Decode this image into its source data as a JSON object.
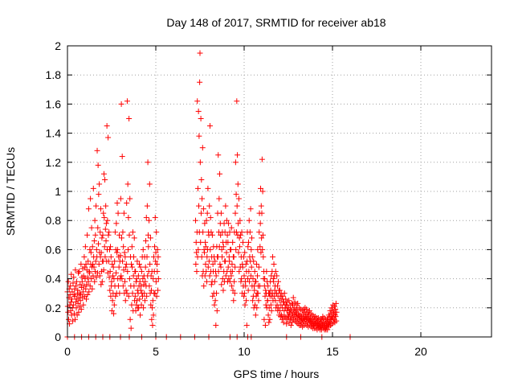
{
  "chart_data": {
    "type": "scatter",
    "title": "Day 148 of 2017, SRMTID for receiver ab18",
    "xlabel": "GPS time / hours",
    "ylabel": "SRMTID / TECUs",
    "xlim": [
      0,
      24
    ],
    "ylim": [
      0,
      2
    ],
    "x_ticks": [
      "0",
      "5",
      "10",
      "15",
      "20"
    ],
    "y_ticks": [
      "0",
      "0.2",
      "0.4",
      "0.6",
      "0.8",
      "1",
      "1.2",
      "1.4",
      "1.6",
      "1.8",
      "2"
    ],
    "grid": true,
    "marker": "plus",
    "color": "#ff0000",
    "x_step_hours": 0.08333,
    "series": [
      {
        "values": [
          [
            0.31,
            0.21,
            0.17,
            0.38,
            0.12
          ],
          [
            0.27,
            0.33,
            0.09,
            0.22,
            0.29
          ],
          [
            0.35,
            0.18,
            0.24,
            0.43,
            0.15
          ],
          [
            0.26,
            0.31,
            0.2,
            0.11,
            0.37
          ],
          [
            0.22,
            0.41,
            0.29,
            0.16,
            0.33
          ],
          [
            0.28,
            0.12,
            0.46,
            0.24,
            0.35
          ],
          [
            0.2,
            0.38,
            0.26,
            0.15,
            0.3
          ],
          [
            0.32,
            0.23,
            0.44,
            0.17,
            0.27
          ],
          [
            0.45,
            0.3,
            0.21,
            0.36,
            0.25
          ],
          [
            0.29,
            0.5,
            0.19,
            0.34,
            0.41
          ],
          [
            0.38,
            0.27,
            0.47,
            0.31,
            0.22
          ],
          [
            0.42,
            0.35,
            0.55,
            0.28,
            0.48
          ],
          [
            0.4,
            0.62,
            0.33,
            0.5,
            0.26
          ],
          [
            0.36,
            0.46,
            0.7,
            0.29,
            0.41
          ],
          [
            0.52,
            0.38,
            0.88,
            0.31,
            0.45
          ],
          [
            0.44,
            0.6,
            0.35,
            0.95,
            0.5
          ],
          [
            0.58,
            0.4,
            0.75,
            0.48,
            0.33
          ],
          [
            0.62,
            0.5,
            0.42,
            1.02,
            0.55
          ],
          [
            0.48,
            0.66,
            0.38,
            0.8,
            0.45
          ],
          [
            0.7,
            0.52,
            0.9,
            0.41,
            0.6
          ],
          [
            0.55,
            1.28,
            0.44,
            0.75,
            1.18
          ],
          [
            0.64,
            0.98,
            0.5,
            1.05,
            0.58
          ],
          [
            0.42,
            0.72,
            0.55,
            0.88,
            0.36
          ],
          [
            0.58,
            0.45,
            0.68,
            0.38,
            0.52
          ],
          [
            0.7,
            0.52,
            0.85,
            0.46,
            1.12
          ],
          [
            0.82,
            0.62,
            1.08,
            0.55,
            0.74
          ],
          [
            0.9,
            0.66,
            0.78,
            0.52,
            1.45
          ],
          [
            0.6,
            0.8,
            0.44,
            1.37,
            0.7
          ],
          [
            0.52,
            0.72,
            0.41,
            0.6,
            0.32
          ],
          [
            0.45,
            0.62,
            0.28,
            0.55,
            0.35
          ],
          [
            0.38,
            0.18,
            0.5,
            0.25,
            0.42
          ],
          [
            0.3,
            0.48,
            0.16,
            0.4,
            0.22
          ],
          [
            0.52,
            0.35,
            0.72,
            0.28,
            0.6
          ],
          [
            0.44,
            0.78,
            0.3,
            0.58,
            0.92
          ],
          [
            0.6,
            0.4,
            0.85,
            0.35,
            0.55
          ],
          [
            0.48,
            0.7,
            0.3,
            0.52,
            0.4
          ],
          [
            0.56,
            0.95,
            0.42,
            1.6,
            0.68
          ],
          [
            0.4,
            1.24,
            0.52,
            0.72,
            0.35
          ],
          [
            0.62,
            0.46,
            0.85,
            0.3,
            0.58
          ],
          [
            0.38,
            0.55,
            0.25,
            0.48,
            0.32
          ],
          [
            0.5,
            0.92,
            0.3,
            1.62,
            0.45
          ],
          [
            1.05,
            0.6,
            0.82,
            0.28,
            1.5
          ],
          [
            0.7,
            0.4,
            0.95,
            0.12,
            0.55
          ],
          [
            0.35,
            0.06,
            0.5,
            0.22,
            0.62
          ],
          [
            0.48,
            0.3,
            0.72,
            0.18,
            0.42
          ],
          [
            0.55,
            0.35,
            0.68,
            0.25,
            0.45
          ],
          [
            0.28,
            0.45,
            0.18,
            0.38,
            0.22
          ],
          [
            0.4,
            0.25,
            0.52,
            0.32,
            0.2
          ],
          [
            0.3,
            0.42,
            0.2,
            0.35,
            0.5
          ],
          [
            0.26,
            0.38,
            0.15,
            0.48,
            0.32
          ],
          [
            0.35,
            0.22,
            0.45,
            0.3,
            0.55
          ],
          [
            0.28,
            0.4,
            0.6,
            0.2,
            0.36
          ],
          [
            0.42,
            0.3,
            0.55,
            0.25,
            0.38
          ],
          [
            0.48,
            0.66,
            0.35,
            0.82,
            0.28
          ],
          [
            0.55,
            0.9,
            0.42,
            1.2,
            0.7
          ],
          [
            0.62,
            0.45,
            0.8,
            0.35,
            1.05
          ],
          [
            0.5,
            0.3,
            0.68,
            0.22,
            0.42
          ],
          [
            0.32,
            0.12,
            0.45,
            0.2,
            0.08
          ],
          [
            0.25,
            0.4,
            0.15,
            0.55,
            0.3
          ],
          [
            0.45,
            0.62,
            0.3,
            0.82,
            0.52
          ],
          [
            0.58,
            0.38,
            0.72,
            0.28,
            0.5
          ],
          [
            0.45,
            0.6,
            0.32,
            0.55,
            0.4
          ],
          [],
          [],
          [],
          [],
          [],
          [],
          [],
          [],
          [],
          [],
          [],
          [],
          [],
          [],
          [],
          [],
          [],
          [],
          [],
          [],
          [],
          [],
          [],
          [],
          [],
          [
            0.8,
            0.5,
            0.65,
            0.58,
            0.45
          ],
          [
            0.72,
            1.62,
            0.55,
            1.02,
            0.6
          ],
          [
            1.55,
            0.9,
            1.38,
            0.72,
            1.75
          ],
          [
            1.95,
            1.2,
            0.65,
            1.5,
            0.85
          ],
          [
            1.08,
            0.55,
            0.95,
            0.42,
            1.3
          ],
          [
            0.72,
            0.45,
            0.88,
            0.35,
            0.6
          ],
          [
            0.58,
            0.78,
            0.42,
            0.65,
            0.5
          ],
          [
            0.62,
            0.45,
            0.8,
            0.38,
            0.55
          ],
          [
            0.85,
            0.6,
            1.02,
            0.48,
            0.72
          ],
          [
            0.7,
            0.52,
            0.9,
            0.42,
            1.45
          ],
          [
            0.6,
            0.82,
            0.45,
            0.72,
            0.36
          ],
          [
            0.55,
            0.38,
            0.7,
            0.28,
            0.5
          ],
          [
            0.45,
            0.62,
            0.3,
            0.55,
            0.22
          ],
          [
            0.38,
            0.52,
            0.25,
            0.45,
            0.08
          ],
          [
            0.42,
            0.3,
            0.62,
            0.18,
            0.55
          ],
          [
            0.85,
            0.55,
            1.25,
            0.45,
            0.72
          ],
          [
            0.95,
            0.62,
            1.12,
            0.5,
            0.78
          ],
          [
            0.7,
            0.48,
            0.85,
            0.36,
            0.6
          ],
          [
            0.55,
            0.72,
            0.4,
            0.65,
            0.32
          ],
          [
            0.62,
            0.45,
            0.78,
            0.38,
            0.52
          ],
          [
            0.72,
            0.52,
            0.9,
            0.42,
            0.65
          ],
          [
            0.58,
            0.8,
            0.45,
            0.7,
            0.38
          ],
          [
            0.65,
            0.48,
            0.78,
            0.4,
            0.55
          ],
          [
            0.52,
            0.72,
            0.38,
            0.6,
            0.45
          ],
          [
            0.6,
            0.42,
            0.75,
            0.35,
            0.5
          ],
          [
            0.45,
            0.65,
            0.32,
            0.55,
            0.25
          ],
          [
            0.55,
            0.38,
            0.72,
            0.3,
            0.48
          ],
          [
            0.85,
            1.2,
            0.6,
            0.98,
            0.72
          ],
          [
            1.62,
            0.9,
            1.25,
            0.7,
            1.05
          ],
          [
            0.78,
            0.58,
            0.95,
            0.45,
            0.68
          ],
          [
            0.62,
            0.8,
            0.48,
            0.7,
            0.38
          ],
          [
            0.55,
            0.4,
            0.72,
            0.3,
            0.5
          ],
          [
            0.48,
            0.65,
            0.35,
            0.55,
            0.28
          ],
          [
            0.42,
            0.3,
            0.58,
            0.22,
            0.38
          ],
          [
            0.35,
            0.5,
            0.25,
            0.45,
            0.08
          ],
          [
            0.52,
            0.72,
            0.4,
            0.62,
            0.32
          ],
          [
            0.65,
            0.45,
            0.8,
            0.38,
            0.55
          ],
          [
            0.72,
            0.52,
            0.88,
            0.42,
            0.6
          ],
          [
            0.48,
            0.68,
            0.35,
            0.55,
            0.25
          ],
          [
            0.4,
            0.28,
            0.52,
            0.2,
            0.35
          ],
          [
            0.32,
            0.45,
            0.22,
            0.38,
            0.15
          ],
          [
            0.38,
            0.28,
            0.5,
            0.2,
            0.3
          ],
          [
            0.42,
            0.6,
            0.3,
            0.35,
            0.25
          ],
          [
            0.48,
            0.72,
            0.85,
            0.35,
            0.62
          ],
          [
            0.78,
            1.02,
            0.58,
            0.9,
            0.68
          ],
          [
            0.85,
            1.22,
            0.6,
            1.0,
            0.7
          ],
          [
            0.55,
            0.4,
            0.45,
            0.12,
            0.35
          ],
          [
            0.4,
            0.28,
            0.08,
            0.32,
            0.22
          ],
          [
            0.3,
            0.45,
            0.2,
            0.38,
            0.25
          ],
          [
            0.25,
            0.35,
            0.15,
            0.3,
            0.1
          ],
          [
            0.2,
            0.3,
            0.12,
            0.28,
            0.38
          ],
          [
            0.32,
            0.22,
            0.42,
            0.18,
            0.28
          ],
          [
            0.45,
            0.3,
            0.55,
            0.25,
            0.4
          ],
          [
            0.38,
            0.5,
            0.28,
            0.42,
            0.32
          ],
          [
            0.35,
            0.25,
            0.45,
            0.2,
            0.3
          ],
          [
            0.3,
            0.42,
            0.22,
            0.35,
            0.18
          ],
          [
            0.28,
            0.38,
            0.2,
            0.32,
            0.15
          ],
          [
            0.25,
            0.32,
            0.18,
            0.28,
            0.14
          ],
          [
            0.22,
            0.3,
            0.15,
            0.26,
            0.12
          ],
          [
            0.2,
            0.28,
            0.14,
            0.24,
            0.1
          ],
          [
            0.24,
            0.18,
            0.3,
            0.14,
            0.22
          ],
          [
            0.2,
            0.26,
            0.13,
            0.22,
            0.09
          ],
          [
            0.18,
            0.24,
            0.12,
            0.2,
            0.15
          ],
          [
            0.2,
            0.14,
            0.25,
            0.1,
            0.17
          ],
          [
            0.16,
            0.22,
            0.12,
            0.19,
            0.08
          ],
          [
            0.18,
            0.13,
            0.23,
            0.1,
            0.15
          ],
          [
            0.22,
            0.16,
            0.27,
            0.12,
            0.19
          ],
          [
            0.2,
            0.15,
            0.24,
            0.11,
            0.17
          ],
          [
            0.18,
            0.14,
            0.22,
            0.1,
            0.16
          ],
          [
            0.19,
            0.13,
            0.23,
            0.09,
            0.15
          ],
          [
            0.16,
            0.12,
            0.2,
            0.08,
            0.14
          ],
          [
            0.15,
            0.11,
            0.19,
            0.08,
            0.13
          ],
          [
            0.14,
            0.1,
            0.18,
            0.07,
            0.12
          ],
          [
            0.15,
            0.11,
            0.19,
            0.08,
            0.13
          ],
          [
            0.17,
            0.12,
            0.2,
            0.09,
            0.14
          ],
          [
            0.16,
            0.12,
            0.19,
            0.08,
            0.13
          ],
          [
            0.14,
            0.1,
            0.17,
            0.07,
            0.12
          ],
          [
            0.15,
            0.11,
            0.18,
            0.08,
            0.12
          ],
          [
            0.13,
            0.1,
            0.16,
            0.07,
            0.11
          ],
          [
            0.12,
            0.09,
            0.15,
            0.06,
            0.1
          ],
          [
            0.11,
            0.08,
            0.14,
            0.06,
            0.09
          ],
          [
            0.12,
            0.09,
            0.14,
            0.06,
            0.1
          ],
          [
            0.1,
            0.08,
            0.13,
            0.05,
            0.09
          ],
          [
            0.11,
            0.08,
            0.13,
            0.06,
            0.09
          ],
          [
            0.09,
            0.07,
            0.12,
            0.05,
            0.08
          ],
          [
            0.1,
            0.07,
            0.12,
            0.05,
            0.08
          ],
          [
            0.12,
            0.08,
            0.14,
            0.06,
            0.1
          ],
          [
            0.1,
            0.07,
            0.13,
            0.05,
            0.09
          ],
          [
            0.09,
            0.06,
            0.12,
            0.05,
            0.08
          ],
          [
            0.1,
            0.07,
            0.12,
            0.05,
            0.08
          ],
          [
            0.12,
            0.09,
            0.15,
            0.07,
            0.1
          ],
          [
            0.14,
            0.1,
            0.18,
            0.08,
            0.12
          ],
          [
            0.16,
            0.12,
            0.2,
            0.09,
            0.14
          ],
          [
            0.18,
            0.13,
            0.22,
            0.1,
            0.16
          ],
          [
            0.17,
            0.12,
            0.21,
            0.1,
            0.15
          ],
          [
            0.19,
            0.14,
            0.23,
            0.11,
            0.17
          ]
        ]
      }
    ],
    "zero_marks_x": [
      0.0,
      0.4,
      0.8,
      1.2,
      1.6,
      2.0,
      2.4,
      3.0,
      3.5,
      4.2,
      5.0,
      5.6,
      6.4,
      7.2,
      8.0,
      9.2,
      9.6,
      10.2,
      10.4,
      12.4,
      13.2,
      14.4,
      16.0
    ]
  }
}
